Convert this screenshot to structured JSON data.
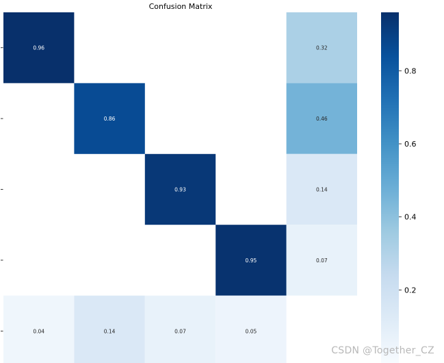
{
  "chart_data": {
    "type": "heatmap",
    "title": "Confusion Matrix",
    "rows": 5,
    "cols": 5,
    "cells": [
      [
        0.96,
        null,
        null,
        null,
        0.32
      ],
      [
        null,
        0.86,
        null,
        null,
        0.46
      ],
      [
        null,
        null,
        0.93,
        null,
        0.14
      ],
      [
        null,
        null,
        null,
        0.95,
        0.07
      ],
      [
        0.04,
        0.14,
        0.07,
        0.05,
        null
      ]
    ],
    "colorbar": {
      "vmin": 0.0,
      "vmax": 0.96,
      "ticks": [
        0.2,
        0.4,
        0.6,
        0.8
      ],
      "tick_labels": [
        "0.2",
        "0.4",
        "0.6",
        "0.8"
      ],
      "colormap": "Blues"
    },
    "colors": {
      "low": "#f7fbff",
      "high": "#08306b"
    }
  },
  "watermark": "CSDN @Together_CZ"
}
